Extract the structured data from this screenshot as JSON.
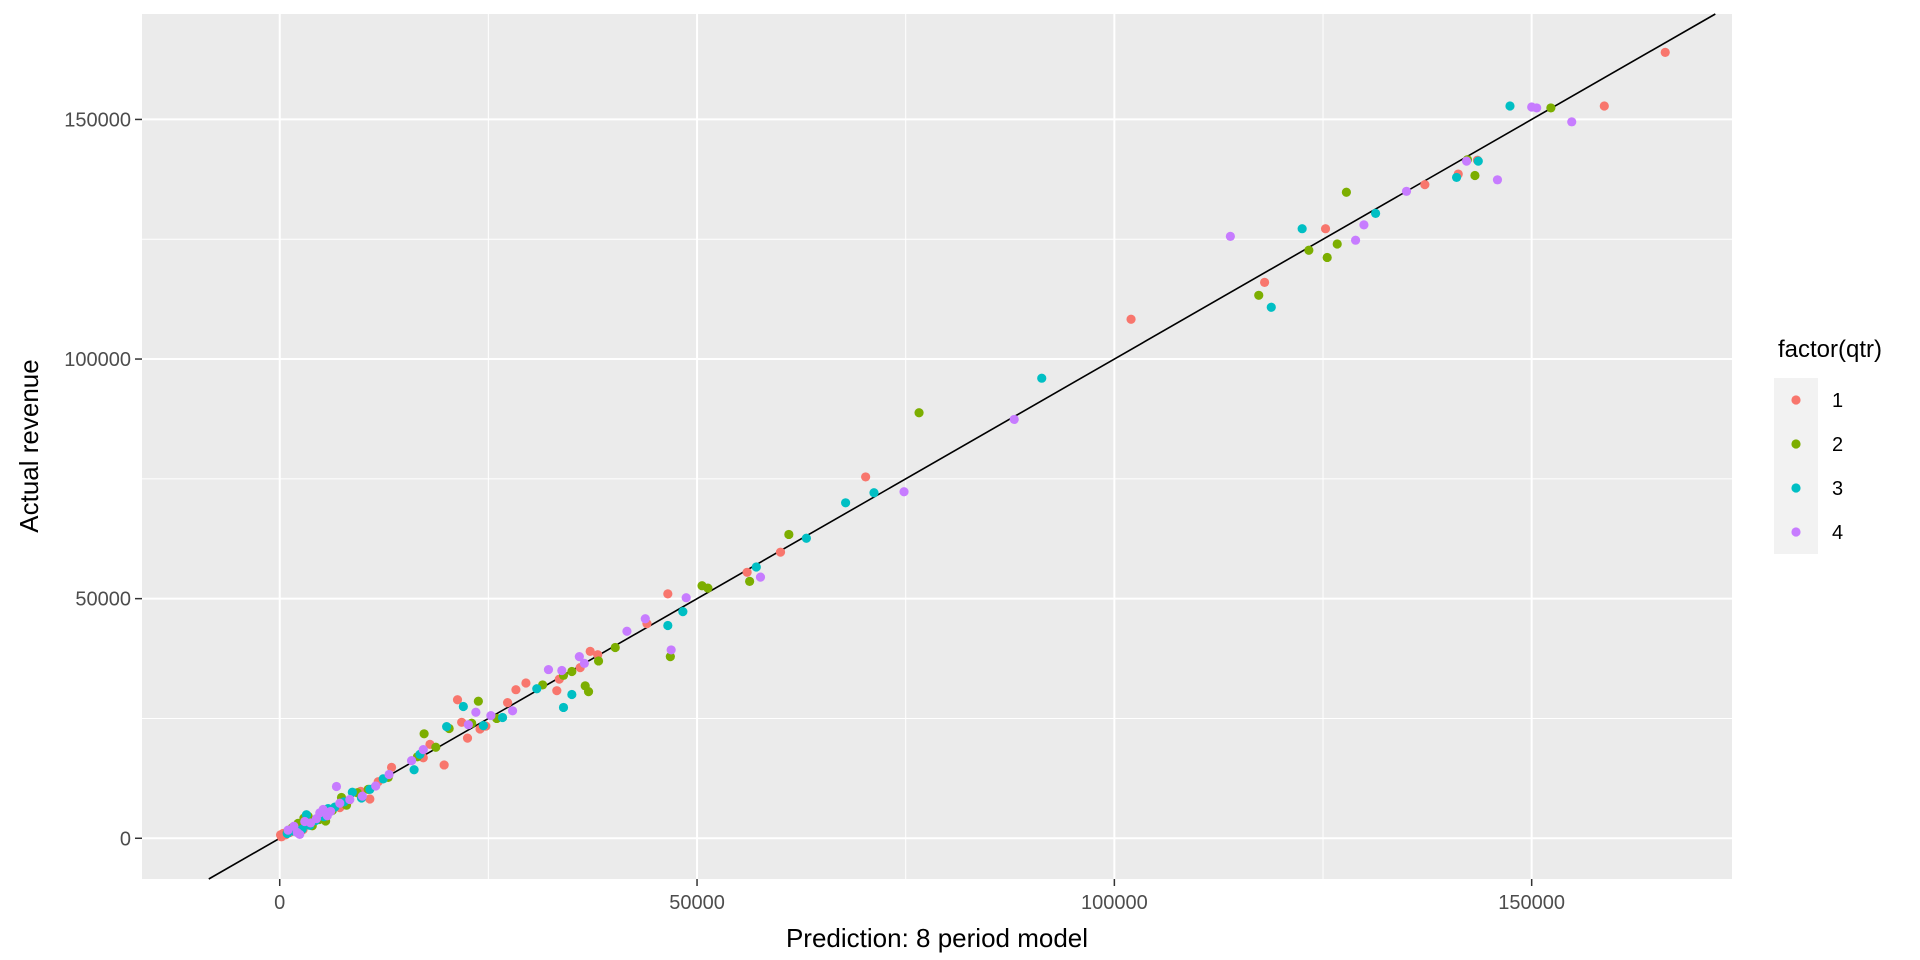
{
  "chart_data": {
    "type": "scatter",
    "title": "",
    "xlabel": "Prediction: 8 period model",
    "ylabel": "Actual revenue",
    "xlim": [
      -16500,
      174000
    ],
    "ylim": [
      -8500,
      172000
    ],
    "x_ticks": [
      0,
      50000,
      100000,
      150000
    ],
    "x_tick_labels": [
      "0",
      "50000",
      "100000",
      "150000"
    ],
    "y_ticks": [
      0,
      50000,
      100000,
      150000
    ],
    "y_tick_labels": [
      "0",
      "50000",
      "100000",
      "150000"
    ],
    "grid": true,
    "reference_line": {
      "slope": 1,
      "intercept": 0,
      "color": "#000000"
    },
    "legend": {
      "title": "factor(qtr)",
      "placement": "right",
      "entries": [
        "1",
        "2",
        "3",
        "4"
      ]
    },
    "colors": {
      "1": "#F8766D",
      "2": "#7CAE00",
      "3": "#00BFC4",
      "4": "#C77CFF"
    },
    "series": [
      {
        "name": "1",
        "points": [
          [
            166000,
            164000
          ],
          [
            158700,
            152800
          ],
          [
            143500,
            141500
          ],
          [
            141200,
            138600
          ],
          [
            137200,
            136400
          ],
          [
            125300,
            127200
          ],
          [
            118000,
            116000
          ],
          [
            102000,
            108300
          ],
          [
            70200,
            75400
          ],
          [
            60000,
            59700
          ],
          [
            56000,
            55500
          ],
          [
            46500,
            51000
          ],
          [
            44000,
            44800
          ],
          [
            37200,
            39000
          ],
          [
            38100,
            38300
          ],
          [
            36000,
            35600
          ],
          [
            33500,
            33200
          ],
          [
            33200,
            30800
          ],
          [
            29500,
            32400
          ],
          [
            28300,
            31000
          ],
          [
            27300,
            28300
          ],
          [
            24700,
            23400
          ],
          [
            24000,
            22800
          ],
          [
            22500,
            20900
          ],
          [
            21800,
            24200
          ],
          [
            21300,
            28900
          ],
          [
            19700,
            15300
          ],
          [
            18000,
            19600
          ],
          [
            17200,
            16800
          ],
          [
            13400,
            14800
          ],
          [
            11800,
            11800
          ],
          [
            10800,
            8200
          ],
          [
            9700,
            9800
          ],
          [
            8300,
            7900
          ],
          [
            7200,
            6400
          ],
          [
            6000,
            5800
          ],
          [
            5000,
            5000
          ],
          [
            4200,
            3800
          ],
          [
            3600,
            3000
          ],
          [
            3000,
            3200
          ],
          [
            2400,
            2200
          ],
          [
            1800,
            1500
          ],
          [
            1200,
            1200
          ],
          [
            700,
            700
          ],
          [
            200,
            300
          ],
          [
            100,
            700
          ],
          [
            400,
            1000
          ],
          [
            2800,
            1800
          ]
        ]
      },
      {
        "name": "2",
        "points": [
          [
            152300,
            152400
          ],
          [
            143200,
            138300
          ],
          [
            142300,
            141600
          ],
          [
            127800,
            134800
          ],
          [
            126700,
            124000
          ],
          [
            125500,
            121200
          ],
          [
            123300,
            122700
          ],
          [
            117300,
            113300
          ],
          [
            76600,
            88800
          ],
          [
            61000,
            63400
          ],
          [
            56300,
            53600
          ],
          [
            51300,
            52200
          ],
          [
            50600,
            52700
          ],
          [
            46800,
            37900
          ],
          [
            40200,
            39800
          ],
          [
            38200,
            37000
          ],
          [
            37000,
            30600
          ],
          [
            36600,
            31800
          ],
          [
            35000,
            34800
          ],
          [
            34000,
            34000
          ],
          [
            31500,
            32000
          ],
          [
            26000,
            25000
          ],
          [
            23800,
            28600
          ],
          [
            23000,
            24000
          ],
          [
            20300,
            22900
          ],
          [
            18700,
            19000
          ],
          [
            17300,
            21800
          ],
          [
            16500,
            17000
          ],
          [
            13000,
            12700
          ],
          [
            10600,
            10200
          ],
          [
            9300,
            9500
          ],
          [
            8000,
            6900
          ],
          [
            7400,
            8500
          ],
          [
            6300,
            5800
          ],
          [
            5500,
            3600
          ],
          [
            4700,
            3900
          ],
          [
            3400,
            4600
          ],
          [
            2900,
            4200
          ],
          [
            2200,
            3100
          ],
          [
            1500,
            2200
          ],
          [
            900,
            1300
          ],
          [
            3900,
            2600
          ]
        ]
      },
      {
        "name": "3",
        "points": [
          [
            147400,
            152800
          ],
          [
            143600,
            141300
          ],
          [
            141000,
            137900
          ],
          [
            131300,
            130400
          ],
          [
            122500,
            127200
          ],
          [
            118800,
            110800
          ],
          [
            91300,
            96000
          ],
          [
            71200,
            72100
          ],
          [
            67800,
            70000
          ],
          [
            63100,
            62600
          ],
          [
            57100,
            56600
          ],
          [
            48300,
            47300
          ],
          [
            46500,
            44400
          ],
          [
            35000,
            30000
          ],
          [
            34000,
            27300
          ],
          [
            30800,
            31200
          ],
          [
            26700,
            25200
          ],
          [
            24400,
            23500
          ],
          [
            22000,
            27500
          ],
          [
            20000,
            23300
          ],
          [
            16800,
            17500
          ],
          [
            16100,
            14300
          ],
          [
            12400,
            12400
          ],
          [
            10800,
            10200
          ],
          [
            9800,
            8400
          ],
          [
            8700,
            9600
          ],
          [
            7700,
            7600
          ],
          [
            6600,
            6500
          ],
          [
            5300,
            4500
          ],
          [
            4300,
            3700
          ],
          [
            3600,
            2700
          ],
          [
            2700,
            1900
          ],
          [
            1700,
            1500
          ],
          [
            900,
            1000
          ],
          [
            5800,
            6200
          ],
          [
            3200,
            4900
          ]
        ]
      },
      {
        "name": "4",
        "points": [
          [
            154800,
            149500
          ],
          [
            150600,
            152400
          ],
          [
            150000,
            152600
          ],
          [
            145900,
            137400
          ],
          [
            142200,
            141300
          ],
          [
            135000,
            135000
          ],
          [
            129900,
            128000
          ],
          [
            128900,
            124800
          ],
          [
            113900,
            125600
          ],
          [
            88000,
            87400
          ],
          [
            74800,
            72300
          ],
          [
            57600,
            54500
          ],
          [
            48700,
            50200
          ],
          [
            46900,
            39300
          ],
          [
            43800,
            45800
          ],
          [
            41600,
            43200
          ],
          [
            36500,
            36500
          ],
          [
            35900,
            37900
          ],
          [
            33800,
            35000
          ],
          [
            32200,
            35200
          ],
          [
            27900,
            26600
          ],
          [
            25300,
            25600
          ],
          [
            23500,
            26300
          ],
          [
            22600,
            23700
          ],
          [
            17200,
            18500
          ],
          [
            15800,
            16200
          ],
          [
            13100,
            13300
          ],
          [
            11500,
            10900
          ],
          [
            9900,
            8800
          ],
          [
            8400,
            8100
          ],
          [
            7200,
            7300
          ],
          [
            6800,
            10800
          ],
          [
            6100,
            5600
          ],
          [
            5200,
            6000
          ],
          [
            4400,
            4100
          ],
          [
            3700,
            3200
          ],
          [
            3000,
            3500
          ],
          [
            2400,
            800
          ],
          [
            1700,
            2500
          ],
          [
            1000,
            1700
          ],
          [
            5700,
            4700
          ],
          [
            4800,
            5300
          ],
          [
            2100,
            1200
          ]
        ]
      }
    ]
  }
}
